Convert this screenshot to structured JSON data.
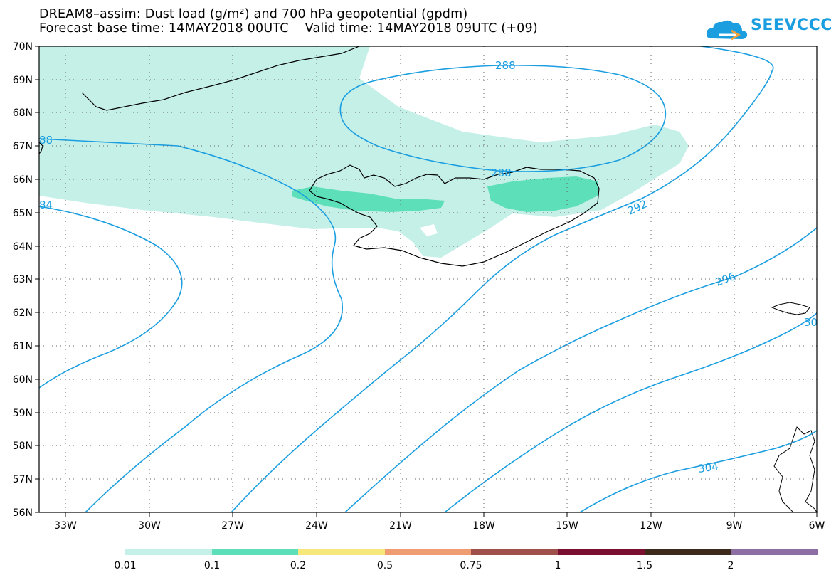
{
  "title_line1": "DREAM8–assim: Dust load (g/m²) and 700 hPa geopotential (gpdm)",
  "title_line2": "Forecast base time: 14MAY2018 00UTC    Valid time: 14MAY2018 09UTC (+09)",
  "logo_text": "SEEVCCC",
  "lat_labels": [
    "70N",
    "69N",
    "68N",
    "67N",
    "66N",
    "65N",
    "64N",
    "63N",
    "62N",
    "61N",
    "60N",
    "59N",
    "58N",
    "57N",
    "56N"
  ],
  "lon_labels": [
    "33W",
    "30W",
    "27W",
    "24W",
    "21W",
    "18W",
    "15W",
    "12W",
    "9W",
    "6W"
  ],
  "contour_labels": [
    "288",
    "288",
    "292",
    "296",
    "304",
    "84",
    "88",
    "30"
  ],
  "colorbar": {
    "labels": [
      "0.01",
      "0.1",
      "0.2",
      "0.5",
      "0.75",
      "1",
      "1.5",
      "2"
    ],
    "colors": [
      "#c5f0e8",
      "#5ddfb9",
      "#f6e77a",
      "#ef9c73",
      "#df8a5f",
      "#a0504a",
      "#7a1030",
      "#3d2a1a",
      "#8e6fa3"
    ]
  },
  "colors": {
    "dust_light": "#c5f0e8",
    "dust_medium": "#5ddfb9",
    "contour": "#1a9ee0",
    "coast": "#000000"
  }
}
